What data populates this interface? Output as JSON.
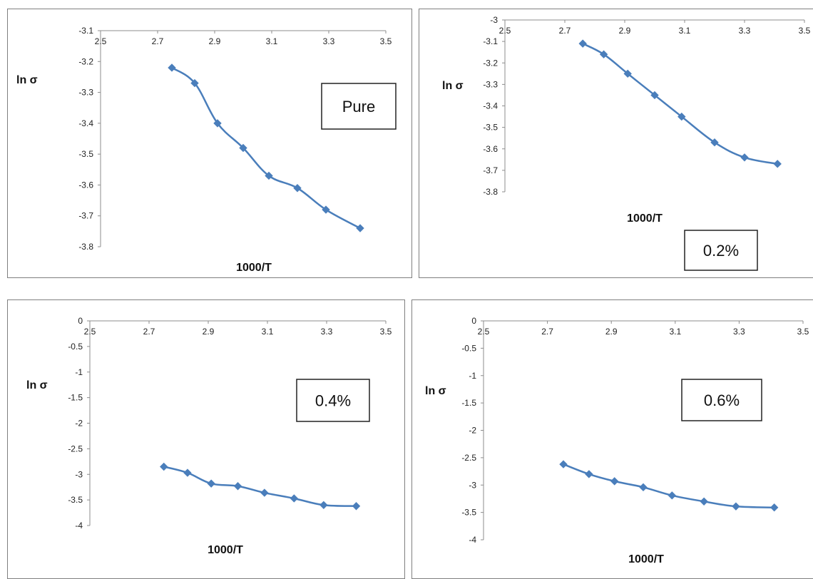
{
  "chart_data": [
    {
      "type": "line",
      "label": "Pure",
      "xlabel": "1000/T",
      "ylabel": "ln σ",
      "xlim": [
        2.5,
        3.5
      ],
      "ylim": [
        -3.8,
        -3.1
      ],
      "xticks": [
        "2.5",
        "2.7",
        "2.9",
        "3.1",
        "3.3",
        "3.5"
      ],
      "yticks": [
        "-3.1",
        "-3.2",
        "-3.3",
        "-3.4",
        "-3.5",
        "-3.6",
        "-3.7",
        "-3.8"
      ],
      "grid": false,
      "color": "#4a7ebb",
      "x": [
        2.75,
        2.83,
        2.91,
        3.0,
        3.09,
        3.19,
        3.29,
        3.41
      ],
      "y": [
        -3.22,
        -3.27,
        -3.4,
        -3.48,
        -3.57,
        -3.61,
        -3.68,
        -3.74
      ]
    },
    {
      "type": "line",
      "label": "0.2%",
      "xlabel": "1000/T",
      "ylabel": "ln σ",
      "xlim": [
        2.5,
        3.5
      ],
      "ylim": [
        -3.8,
        -3.0
      ],
      "xticks": [
        "2.5",
        "2.7",
        "2.9",
        "3.1",
        "3.3",
        "3.5"
      ],
      "yticks": [
        "-3",
        "-3.1",
        "-3.2",
        "-3.3",
        "-3.4",
        "-3.5",
        "-3.6",
        "-3.7",
        "-3.8"
      ],
      "grid": false,
      "color": "#4a7ebb",
      "x": [
        2.76,
        2.83,
        2.91,
        3.0,
        3.09,
        3.2,
        3.3,
        3.41
      ],
      "y": [
        -3.11,
        -3.16,
        -3.25,
        -3.35,
        -3.45,
        -3.57,
        -3.64,
        -3.67
      ]
    },
    {
      "type": "line",
      "label": "0.4%",
      "xlabel": "1000/T",
      "ylabel": "ln σ",
      "xlim": [
        2.5,
        3.5
      ],
      "ylim": [
        -4.0,
        0.0
      ],
      "xticks": [
        "2.5",
        "2.7",
        "2.9",
        "3.1",
        "3.3",
        "3.5"
      ],
      "yticks": [
        "0",
        "-0.5",
        "-1",
        "-1.5",
        "-2",
        "-2.5",
        "-3",
        "-3.5",
        "-4"
      ],
      "grid": false,
      "color": "#4a7ebb",
      "x": [
        2.75,
        2.83,
        2.91,
        3.0,
        3.09,
        3.19,
        3.29,
        3.4
      ],
      "y": [
        -2.85,
        -2.97,
        -3.18,
        -3.23,
        -3.36,
        -3.47,
        -3.6,
        -3.62
      ]
    },
    {
      "type": "line",
      "label": "0.6%",
      "xlabel": "1000/T",
      "ylabel": "ln σ",
      "xlim": [
        2.5,
        3.5
      ],
      "ylim": [
        -4.0,
        0.0
      ],
      "xticks": [
        "2.5",
        "2.7",
        "2.9",
        "3.1",
        "3.3",
        "3.5"
      ],
      "yticks": [
        "0",
        "-0.5",
        "-1",
        "-1.5",
        "-2",
        "-2.5",
        "-3",
        "-3.5",
        "-4"
      ],
      "grid": false,
      "color": "#4a7ebb",
      "x": [
        2.75,
        2.83,
        2.91,
        3.0,
        3.09,
        3.19,
        3.29,
        3.41
      ],
      "y": [
        -2.62,
        -2.8,
        -2.93,
        -3.04,
        -3.19,
        -3.3,
        -3.39,
        -3.41
      ]
    }
  ]
}
